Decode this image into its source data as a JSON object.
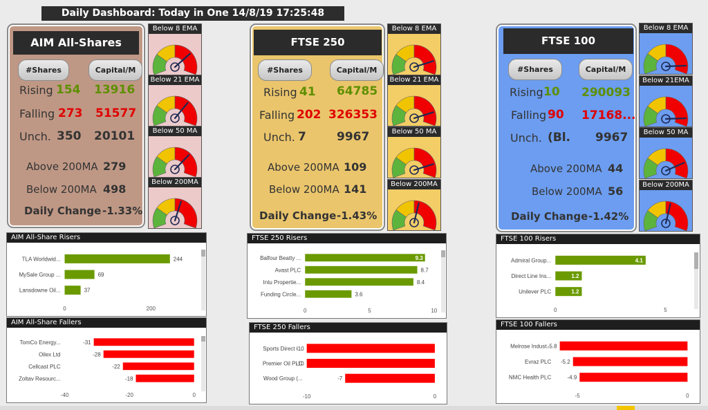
{
  "dashboard": {
    "title": "Daily Dashboard: Today in One 14/8/19 17:25:48"
  },
  "indexes": [
    {
      "title": "AIM All-Shares",
      "col_shares": "#Shares",
      "col_capital": "Capital/M",
      "rising_label": "Rising",
      "rising_count": "154",
      "rising_cap": "13916",
      "falling_label": "Falling",
      "falling_count": "273",
      "falling_cap": "51577",
      "unch_label": "Unch.",
      "unch_count": "350",
      "unch_cap": "20101",
      "above_label": "Above 200MA",
      "above_value": "279",
      "below_label": "Below 200MA",
      "below_value": "498",
      "change_label": "Daily Change",
      "change_value": "-1.33%",
      "bg": "#bf9885",
      "gauges": [
        {
          "label": "Below 8 EMA",
          "level": 0.72
        },
        {
          "label": "Below 21 EMA",
          "level": 0.68
        },
        {
          "label": "Below 50 MA",
          "level": 0.7
        },
        {
          "label": "Below 200MA",
          "level": 0.58
        }
      ]
    },
    {
      "title": "FTSE 250",
      "col_shares": "#Shares",
      "col_capital": "Capital/M",
      "rising_label": "Rising",
      "rising_count": "41",
      "rising_cap": "64785",
      "falling_label": "Falling",
      "falling_count": "202",
      "falling_cap": "326353",
      "unch_label": "Unch.",
      "unch_count": "7",
      "unch_cap": "9967",
      "above_label": "Above 200MA",
      "above_value": "109",
      "below_label": "Below 200MA",
      "below_value": "141",
      "change_label": "Daily Change",
      "change_value": "-1.43%",
      "bg": "#eac56c",
      "gauges": [
        {
          "label": "Below 8 EMA",
          "level": 0.83
        },
        {
          "label": "Below 21 EMA",
          "level": 0.83
        },
        {
          "label": "Below 50 MA",
          "level": 0.83
        },
        {
          "label": "Below 200MA",
          "level": 0.56
        }
      ]
    },
    {
      "title": "FTSE 100",
      "col_shares": "#Shares",
      "col_capital": "Capital/M",
      "rising_label": "Rising",
      "rising_count": "10",
      "rising_cap": "290093",
      "falling_label": "Falling",
      "falling_count": "90",
      "falling_cap": "17168...",
      "unch_label": "Unch.",
      "unch_count": "(Bl.",
      "unch_cap": "9967",
      "above_label": "Above 200MA",
      "above_value": "44",
      "below_label": "Below 200MA",
      "below_value": "56",
      "change_label": "Daily Change",
      "change_value": "-1.42%",
      "bg": "#6c9df0",
      "gauges": [
        {
          "label": "Below 8 EMA",
          "level": 0.9
        },
        {
          "label": "Below 21EMA",
          "level": 0.9
        },
        {
          "label": "Below 50 MA",
          "level": 0.8
        },
        {
          "label": "Below 200MA",
          "level": 0.56
        }
      ]
    }
  ],
  "charts": [
    {
      "title": "AIM All-Share Risers",
      "bar_color": "#6a9a00",
      "scroll": true,
      "inside_labels": false,
      "categories": [
        "TLA Worldwid...",
        "MySale Group ...",
        "Lansdowne Oil..."
      ],
      "values": [
        244,
        69,
        37
      ],
      "labels": [
        "244",
        "69",
        "37"
      ],
      "xlim": [
        0,
        300
      ],
      "ticks": [
        0,
        200
      ],
      "tick_labels": [
        "0",
        "200"
      ]
    },
    {
      "title": "AIM All-Share Fallers",
      "bar_color": "#ff0000",
      "scroll": true,
      "inside_labels": false,
      "categories": [
        "TomCo Energy...",
        "Oilex Ltd",
        "Cellcast PLC",
        "Zoltav Resourc..."
      ],
      "values": [
        -31,
        -28,
        -22,
        -18
      ],
      "labels": [
        "-31",
        "-28",
        "-22",
        "-18"
      ],
      "xlim": [
        -40,
        0
      ],
      "ticks": [
        -40,
        -20,
        0
      ],
      "tick_labels": [
        "-40",
        "-20",
        "0"
      ]
    },
    {
      "title": "FTSE 250 Risers",
      "bar_color": "#6a9a00",
      "scroll": true,
      "inside_labels": false,
      "categories": [
        "Balfour Beatty ...",
        "Avast PLC",
        "Intu Propertie...",
        "Funding Circle..."
      ],
      "values": [
        9.3,
        8.7,
        8.4,
        3.6
      ],
      "labels": [
        "9.3",
        "8.7",
        "8.4",
        "3.6"
      ],
      "xlim": [
        0,
        10
      ],
      "ticks": [
        0,
        5,
        10
      ],
      "tick_labels": [
        "0",
        "5",
        "10"
      ]
    },
    {
      "title": "FTSE 250 Fallers",
      "bar_color": "#ff0000",
      "scroll": false,
      "inside_labels": false,
      "categories": [
        "Sports Direct I...",
        "Premier Oil PLC",
        "Wood Group (..."
      ],
      "values": [
        -10,
        -10,
        -7
      ],
      "labels": [
        "-10",
        "-10",
        "-7"
      ],
      "xlim": [
        -10,
        0
      ],
      "ticks": [
        -10,
        0
      ],
      "tick_labels": [
        "-10",
        "0"
      ]
    },
    {
      "title": "FTSE 100 Risers",
      "bar_color": "#6a9a00",
      "scroll": true,
      "inside_labels": true,
      "categories": [
        "Admiral Group...",
        "Direct Line Ins...",
        "Unilever PLC"
      ],
      "values": [
        4.1,
        1.2,
        1.2
      ],
      "labels": [
        "4.1",
        "1.2",
        "1.2"
      ],
      "xlim": [
        0,
        6
      ],
      "ticks": [
        0,
        5
      ],
      "tick_labels": [
        "0",
        "5"
      ]
    },
    {
      "title": "FTSE 100 Fallers",
      "bar_color": "#ff0000",
      "scroll": false,
      "inside_labels": false,
      "categories": [
        "Melrose Indust...",
        "Evraz PLC",
        "NMC Health PLC"
      ],
      "values": [
        -5.8,
        -5.2,
        -4.9
      ],
      "labels": [
        "-5.8",
        "-5.2",
        "-4.9"
      ],
      "xlim": [
        -6,
        0
      ],
      "ticks": [
        -5,
        0
      ],
      "tick_labels": [
        "-5",
        "0"
      ]
    }
  ]
}
